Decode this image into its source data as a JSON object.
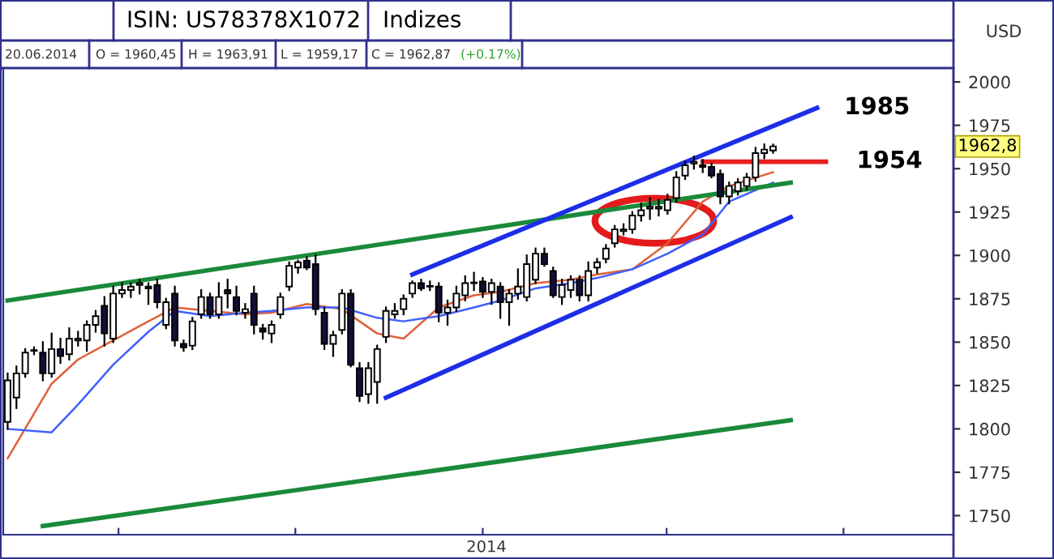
{
  "chart_data": {
    "type": "candlestick",
    "title": "ISIN: US78378X1072",
    "ylabel": "USD",
    "annotations": [
      "Indizes",
      "20.06.2014",
      "O = 1960,45",
      "H = 1963,91",
      "L = 1959,17",
      "C = 1962,87",
      "(+0.17%)",
      "2014",
      "1985",
      "1954",
      {
        "text": "1962,8",
        "y": 1962.8
      }
    ],
    "categories": [
      null,
      null,
      null,
      null,
      null,
      null,
      null,
      null,
      null,
      null,
      null,
      null,
      null,
      null,
      null,
      null,
      null,
      null,
      null,
      null,
      null,
      null,
      null,
      null,
      null,
      null,
      null,
      null,
      null,
      null,
      null,
      null,
      null,
      null,
      null,
      null,
      null,
      null,
      null,
      null,
      null,
      null,
      null,
      null,
      null,
      null,
      null,
      null,
      null,
      null,
      null,
      null,
      null,
      null,
      null,
      null,
      null,
      null,
      null,
      null,
      null,
      null,
      null,
      null,
      null,
      null,
      null,
      null,
      null,
      null,
      null,
      null,
      null,
      null,
      null,
      null,
      null,
      null,
      null,
      null,
      null,
      null,
      null,
      null,
      null,
      null,
      null,
      null,
      null,
      null,
      null,
      null,
      null,
      null,
      null,
      null,
      null,
      null,
      null,
      null,
      null,
      null,
      null,
      null,
      null,
      null,
      null,
      null
    ],
    "ohlc": [
      [
        1804,
        1832,
        1800,
        1828
      ],
      [
        1818,
        1836,
        1812,
        1832
      ],
      [
        1832,
        1846,
        1830,
        1844
      ],
      [
        1845,
        1847,
        1843,
        1845
      ],
      [
        1844,
        1850,
        1828,
        1832
      ],
      [
        1832,
        1855,
        1830,
        1846
      ],
      [
        1846,
        1852,
        1838,
        1842
      ],
      [
        1843,
        1858,
        1840,
        1852
      ],
      [
        1851,
        1856,
        1848,
        1852
      ],
      [
        1851,
        1862,
        1845,
        1860
      ],
      [
        1860,
        1868,
        1856,
        1865
      ],
      [
        1871,
        1876,
        1848,
        1855
      ],
      [
        1852,
        1882,
        1850,
        1878
      ],
      [
        1878,
        1884,
        1876,
        1880
      ],
      [
        1880,
        1884,
        1876,
        1882
      ],
      [
        1883,
        1886,
        1878,
        1884
      ],
      [
        1882,
        1884,
        1872,
        1881
      ],
      [
        1883,
        1886,
        1870,
        1873
      ],
      [
        1860,
        1875,
        1858,
        1873
      ],
      [
        1878,
        1882,
        1848,
        1851
      ],
      [
        1849,
        1851,
        1845,
        1847
      ],
      [
        1848,
        1864,
        1846,
        1862
      ],
      [
        1866,
        1880,
        1864,
        1876
      ],
      [
        1876,
        1878,
        1864,
        1866
      ],
      [
        1866,
        1884,
        1864,
        1876
      ],
      [
        1880,
        1886,
        1870,
        1878
      ],
      [
        1876,
        1882,
        1866,
        1868
      ],
      [
        1867,
        1872,
        1864,
        1869
      ],
      [
        1878,
        1882,
        1855,
        1860
      ],
      [
        1858,
        1860,
        1852,
        1856
      ],
      [
        1855,
        1862,
        1850,
        1860
      ],
      [
        1866,
        1878,
        1864,
        1876
      ],
      [
        1882,
        1896,
        1880,
        1894
      ],
      [
        1893,
        1897,
        1890,
        1896
      ],
      [
        1897,
        1899,
        1892,
        1893
      ],
      [
        1895,
        1900,
        1866,
        1869
      ],
      [
        1867,
        1870,
        1846,
        1849
      ],
      [
        1849,
        1856,
        1842,
        1854
      ],
      [
        1857,
        1880,
        1855,
        1878
      ],
      [
        1878,
        1880,
        1836,
        1837
      ],
      [
        1835,
        1838,
        1816,
        1819
      ],
      [
        1820,
        1838,
        1815,
        1835
      ],
      [
        1827,
        1848,
        1815,
        1846
      ],
      [
        1853,
        1870,
        1850,
        1868
      ],
      [
        1866,
        1872,
        1864,
        1868
      ],
      [
        1869,
        1877,
        1866,
        1875
      ],
      [
        1878,
        1885,
        1876,
        1884
      ],
      [
        1884,
        1886,
        1880,
        1881
      ],
      [
        1882,
        1885,
        1880,
        1882
      ],
      [
        1882,
        1884,
        1862,
        1867
      ],
      [
        1867,
        1874,
        1860,
        1870
      ],
      [
        1870,
        1882,
        1868,
        1878
      ],
      [
        1877,
        1888,
        1874,
        1884
      ],
      [
        1884,
        1890,
        1880,
        1884
      ],
      [
        1885,
        1887,
        1876,
        1879
      ],
      [
        1879,
        1886,
        1872,
        1884
      ],
      [
        1882,
        1884,
        1864,
        1873
      ],
      [
        1873,
        1880,
        1860,
        1878
      ],
      [
        1878,
        1892,
        1875,
        1882
      ],
      [
        1876,
        1900,
        1874,
        1895
      ],
      [
        1886,
        1904,
        1884,
        1901
      ],
      [
        1901,
        1904,
        1894,
        1895
      ],
      [
        1891,
        1893,
        1876,
        1877
      ],
      [
        1876,
        1886,
        1872,
        1883
      ],
      [
        1880,
        1888,
        1876,
        1886
      ],
      [
        1886,
        1888,
        1874,
        1877
      ],
      [
        1877,
        1896,
        1874,
        1891
      ],
      [
        1893,
        1898,
        1890,
        1896
      ],
      [
        1898,
        1906,
        1896,
        1904
      ],
      [
        1907,
        1917,
        1905,
        1915
      ],
      [
        1914,
        1918,
        1912,
        1915
      ],
      [
        1915,
        1925,
        1913,
        1923
      ],
      [
        1923,
        1930,
        1920,
        1926
      ],
      [
        1927,
        1933,
        1921,
        1928
      ],
      [
        1927,
        1932,
        1923,
        1928
      ],
      [
        1926,
        1935,
        1924,
        1932
      ],
      [
        1933,
        1948,
        1931,
        1945
      ],
      [
        1946,
        1954,
        1944,
        1952
      ],
      [
        1953,
        1957,
        1950,
        1954
      ],
      [
        1952,
        1955,
        1948,
        1951
      ],
      [
        1951,
        1953,
        1945,
        1946
      ],
      [
        1947,
        1949,
        1930,
        1934
      ],
      [
        1934,
        1942,
        1930,
        1940
      ],
      [
        1937,
        1944,
        1935,
        1942
      ],
      [
        1940,
        1947,
        1938,
        1945
      ],
      [
        1945,
        1962,
        1943,
        1959
      ],
      [
        1959,
        1964,
        1956,
        1961
      ],
      [
        1960.45,
        1963.91,
        1959.17,
        1962.87
      ],
      null,
      null,
      null,
      null,
      null,
      null,
      null,
      null,
      null,
      null,
      null,
      null,
      null,
      null,
      null,
      null,
      null,
      null,
      null,
      null
    ],
    "series": [
      {
        "type": "line",
        "color": "#e0603a",
        "values": [
          1783,
          null,
          null,
          null,
          null,
          1826,
          null,
          null,
          1840,
          null,
          null,
          null,
          1851,
          null,
          null,
          null,
          1862,
          null,
          null,
          1870,
          null,
          null,
          null,
          1868,
          null,
          null,
          null,
          1866,
          null,
          null,
          1867,
          null,
          null,
          null,
          1872,
          null,
          null,
          null,
          1869,
          null,
          null,
          null,
          1855,
          null,
          null,
          1852,
          null,
          null,
          null,
          1870,
          null,
          null,
          null,
          1877,
          null,
          null,
          1879,
          null,
          null,
          null,
          1884,
          null,
          null,
          null,
          1886,
          null,
          null,
          1889,
          null,
          null,
          null,
          1892,
          null,
          null,
          null,
          1907,
          null,
          null,
          null,
          1931,
          null,
          null,
          1940,
          null,
          null,
          null,
          null,
          1948,
          null,
          null,
          null,
          null,
          null,
          null,
          null,
          null,
          null,
          null,
          null,
          null,
          null,
          null,
          null,
          null,
          null,
          null,
          null,
          null
        ]
      },
      {
        "type": "line",
        "color": "#4060ff",
        "values": [
          1800,
          null,
          null,
          null,
          null,
          1798,
          null,
          null,
          1814,
          null,
          null,
          null,
          1837,
          null,
          null,
          null,
          1856,
          null,
          null,
          1868,
          null,
          null,
          null,
          1865,
          null,
          null,
          null,
          1867,
          null,
          null,
          1868,
          null,
          null,
          null,
          1870,
          null,
          null,
          null,
          1870,
          null,
          null,
          null,
          1864,
          null,
          null,
          1862,
          null,
          null,
          null,
          1865,
          null,
          null,
          null,
          1870,
          null,
          null,
          1874,
          null,
          null,
          null,
          1881,
          null,
          null,
          null,
          1884,
          null,
          null,
          1887,
          null,
          null,
          null,
          1892,
          null,
          null,
          null,
          1901,
          null,
          null,
          null,
          1912,
          null,
          null,
          1931,
          null,
          null,
          null,
          null,
          1942,
          null,
          null,
          null,
          null,
          null,
          null,
          null,
          null,
          null,
          null,
          null,
          null,
          null,
          null,
          null,
          null,
          null,
          null,
          null,
          null
        ]
      },
      {
        "type": "line",
        "color": "#1a8a3a",
        "values": [
          1874,
          null,
          null,
          null,
          null,
          null,
          null,
          null,
          null,
          null,
          null,
          null,
          null,
          null,
          null,
          null,
          null,
          null,
          null,
          null,
          null,
          null,
          null,
          null,
          null,
          null,
          null,
          null,
          null,
          null,
          null,
          null,
          null,
          null,
          null,
          null,
          null,
          null,
          null,
          null,
          null,
          null,
          null,
          null,
          null,
          null,
          null,
          null,
          null,
          null,
          null,
          null,
          null,
          null,
          null,
          null,
          null,
          null,
          null,
          null,
          null,
          null,
          null,
          null,
          null,
          null,
          null,
          null,
          null,
          null,
          null,
          null,
          null,
          null,
          null,
          null,
          null,
          null,
          null,
          null,
          null,
          null,
          null,
          null,
          null,
          null,
          null,
          null,
          null,
          1942,
          null,
          null,
          null,
          null,
          null,
          null,
          null,
          null,
          null,
          null,
          null,
          null,
          null,
          null,
          null,
          null,
          null,
          null
        ]
      },
      {
        "type": "line",
        "color": "#1a8a3a",
        "values": [
          null,
          null,
          null,
          null,
          1744,
          null,
          null,
          null,
          null,
          null,
          null,
          null,
          null,
          null,
          null,
          null,
          null,
          null,
          null,
          null,
          null,
          null,
          null,
          null,
          null,
          null,
          null,
          null,
          null,
          null,
          null,
          null,
          null,
          null,
          null,
          null,
          null,
          null,
          null,
          null,
          null,
          null,
          null,
          null,
          null,
          null,
          null,
          null,
          null,
          null,
          null,
          null,
          null,
          null,
          null,
          null,
          null,
          null,
          null,
          null,
          null,
          null,
          null,
          null,
          null,
          null,
          null,
          null,
          null,
          null,
          null,
          null,
          null,
          null,
          null,
          null,
          null,
          null,
          null,
          null,
          null,
          null,
          null,
          null,
          null,
          null,
          null,
          null,
          null,
          1805,
          null,
          null,
          null,
          null,
          null,
          null,
          null,
          null,
          null,
          null,
          null,
          null,
          null,
          null,
          null,
          null,
          null,
          null
        ]
      },
      {
        "type": "line",
        "color": "#1c2ee8",
        "values": [
          null,
          null,
          null,
          null,
          null,
          null,
          null,
          null,
          null,
          null,
          null,
          null,
          null,
          null,
          null,
          null,
          null,
          null,
          null,
          null,
          null,
          null,
          null,
          null,
          null,
          null,
          null,
          null,
          null,
          null,
          null,
          null,
          null,
          null,
          null,
          null,
          null,
          null,
          null,
          null,
          null,
          null,
          null,
          null,
          null,
          null,
          1889,
          null,
          null,
          null,
          null,
          null,
          null,
          null,
          null,
          null,
          null,
          null,
          null,
          null,
          null,
          null,
          null,
          null,
          null,
          null,
          null,
          null,
          null,
          null,
          null,
          null,
          null,
          null,
          null,
          null,
          null,
          null,
          null,
          null,
          null,
          null,
          null,
          null,
          null,
          null,
          null,
          null,
          null,
          null,
          null,
          null,
          1985,
          null,
          null,
          null,
          null,
          null,
          null,
          null,
          null,
          null,
          null,
          null,
          null,
          null,
          null,
          null
        ]
      },
      {
        "type": "line",
        "color": "#1c2ee8",
        "values": [
          null,
          null,
          null,
          null,
          null,
          null,
          null,
          null,
          null,
          null,
          null,
          null,
          null,
          null,
          null,
          null,
          null,
          null,
          null,
          null,
          null,
          null,
          null,
          null,
          null,
          null,
          null,
          null,
          null,
          null,
          null,
          null,
          null,
          null,
          null,
          null,
          null,
          null,
          null,
          null,
          null,
          null,
          null,
          1818,
          null,
          null,
          null,
          null,
          null,
          null,
          null,
          null,
          null,
          null,
          null,
          null,
          null,
          null,
          null,
          null,
          null,
          null,
          null,
          null,
          null,
          null,
          null,
          null,
          null,
          null,
          null,
          null,
          null,
          null,
          null,
          null,
          null,
          null,
          null,
          null,
          null,
          null,
          null,
          null,
          null,
          null,
          null,
          null,
          null,
          1922,
          null,
          null,
          null,
          null,
          null,
          null,
          null,
          null,
          null,
          null,
          null,
          null,
          null,
          null,
          null,
          null,
          null,
          null
        ]
      },
      {
        "type": "line",
        "color": "#e82020",
        "values": [
          null,
          null,
          null,
          null,
          null,
          null,
          null,
          null,
          null,
          null,
          null,
          null,
          null,
          null,
          null,
          null,
          null,
          null,
          null,
          null,
          null,
          null,
          null,
          null,
          null,
          null,
          null,
          null,
          null,
          null,
          null,
          null,
          null,
          null,
          null,
          null,
          null,
          null,
          null,
          null,
          null,
          null,
          null,
          null,
          null,
          null,
          null,
          null,
          null,
          null,
          null,
          null,
          null,
          null,
          null,
          null,
          null,
          null,
          null,
          null,
          null,
          null,
          null,
          null,
          null,
          null,
          null,
          null,
          null,
          null,
          null,
          null,
          null,
          null,
          null,
          null,
          null,
          null,
          null,
          1954,
          null,
          null,
          null,
          null,
          null,
          null,
          null,
          null,
          null,
          null,
          null,
          null,
          null,
          1954,
          null,
          null,
          null,
          null,
          null,
          null,
          null,
          null,
          null,
          null,
          null,
          null,
          null,
          null
        ]
      }
    ],
    "ylim": [
      1739,
      2008
    ],
    "yticks": [
      1750,
      1775,
      1800,
      1825,
      1850,
      1875,
      1900,
      1925,
      1950,
      1975,
      2000
    ],
    "tick_labels": "y",
    "grid": false,
    "legend": false
  }
}
